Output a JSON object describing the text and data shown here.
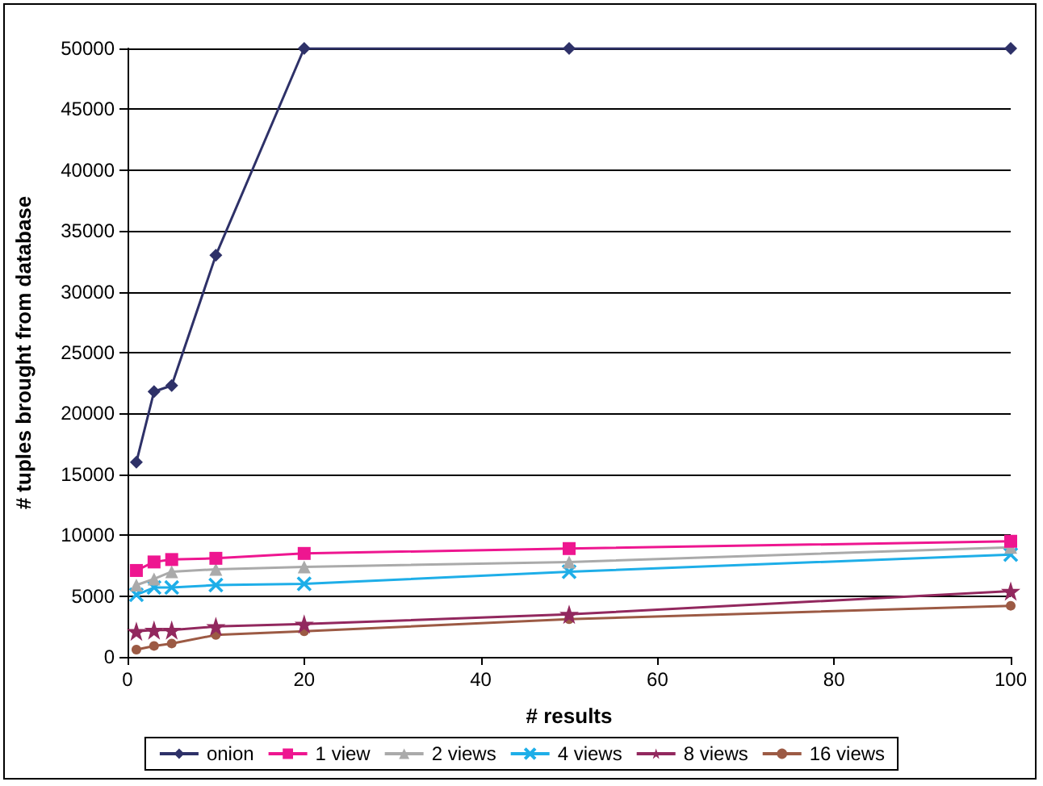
{
  "chart_data": {
    "type": "line",
    "xlabel": "# results",
    "ylabel": "# tuples brought from database",
    "x": [
      1,
      3,
      5,
      10,
      20,
      50,
      100
    ],
    "xlim": [
      0,
      100
    ],
    "xticks": [
      0,
      20,
      40,
      60,
      80,
      100
    ],
    "ylim": [
      0,
      50000
    ],
    "yticks": [
      0,
      5000,
      10000,
      15000,
      20000,
      25000,
      30000,
      35000,
      40000,
      45000,
      50000
    ],
    "grid": "y",
    "legend": "bottom",
    "series": [
      {
        "name": "onion",
        "color": "#2e3168",
        "marker": "diamond",
        "values": [
          16000,
          21800,
          22300,
          33000,
          50000,
          50000,
          50000
        ]
      },
      {
        "name": "1 view",
        "color": "#ee1690",
        "marker": "square",
        "values": [
          7100,
          7800,
          8000,
          8100,
          8500,
          8900,
          9500
        ]
      },
      {
        "name": "2 views",
        "color": "#aaaaaa",
        "marker": "triangle",
        "values": [
          5900,
          6400,
          7000,
          7200,
          7400,
          7800,
          9000
        ]
      },
      {
        "name": "4 views",
        "color": "#1eaee8",
        "marker": "cross",
        "values": [
          5100,
          5700,
          5700,
          5900,
          6000,
          7000,
          8400
        ]
      },
      {
        "name": "8 views",
        "color": "#92285e",
        "marker": "star",
        "values": [
          2100,
          2200,
          2200,
          2500,
          2700,
          3500,
          5400
        ]
      },
      {
        "name": "16 views",
        "color": "#9c5a44",
        "marker": "circle",
        "values": [
          600,
          900,
          1100,
          1800,
          2100,
          3100,
          4200
        ]
      }
    ]
  }
}
